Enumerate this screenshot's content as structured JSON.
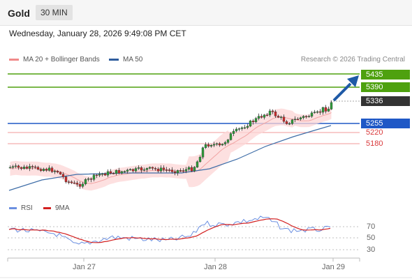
{
  "header": {
    "instrument": "Gold",
    "interval": "30 MIN"
  },
  "datetime": "Wednesday, January 28, 2026 9:49:08 PM CET",
  "legend": {
    "bollinger": "MA 20 + Bollinger Bands",
    "ma50": "MA 50",
    "copyright": "Research © 2026 Trading Central"
  },
  "levels": {
    "r2": "5435",
    "r1": "5390",
    "last": "5336",
    "pivot": "5255",
    "s1": "5220",
    "s2": "5180"
  },
  "rsi_legend": {
    "rsi": "RSI",
    "ma9": "9MA"
  },
  "rsi_axis": {
    "t70": "70",
    "t50": "50",
    "t30": "30"
  },
  "x_axis": {
    "d1": "Jan 27",
    "d2": "Jan 28",
    "d3": "Jan 29"
  },
  "colors": {
    "resistance": "#4ea10f",
    "pivot": "#1f58c6",
    "support": "#d9383a",
    "candle_up": "#2e9b3a",
    "candle_down": "#cc2b2b",
    "bands": "#fcd6d6",
    "ma50": "#3f6ea8",
    "rsi": "#6b8fe0",
    "rsi_ma": "#d32020",
    "arrow": "#1f5aa6"
  }
}
